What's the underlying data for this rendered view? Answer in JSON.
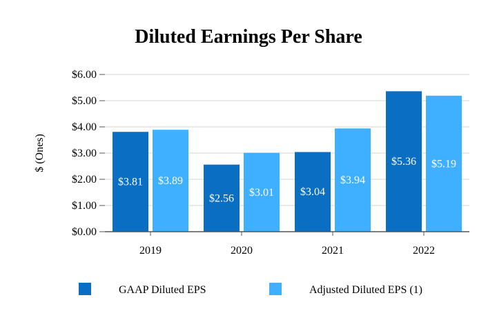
{
  "chart_data": {
    "type": "bar",
    "title": "Diluted Earnings Per Share",
    "ylabel": "$ (Ones)",
    "xlabel": "",
    "categories": [
      "2019",
      "2020",
      "2021",
      "2022"
    ],
    "series": [
      {
        "name": "GAAP Diluted EPS",
        "values": [
          3.81,
          2.56,
          3.04,
          5.36
        ],
        "labels": [
          "$3.81",
          "$2.56",
          "$3.04",
          "$5.36"
        ],
        "color": "#0a6fc2"
      },
      {
        "name": "Adjusted Diluted EPS (1)",
        "values": [
          3.89,
          3.01,
          3.94,
          5.19
        ],
        "labels": [
          "$3.89",
          "$3.01",
          "$3.94",
          "$5.19"
        ],
        "color": "#3fb0ff"
      }
    ],
    "ylim": [
      0,
      6
    ],
    "yticks": [
      0,
      1,
      2,
      3,
      4,
      5,
      6
    ],
    "ytick_labels": [
      "$0.00",
      "$1.00",
      "$2.00",
      "$3.00",
      "$4.00",
      "$5.00",
      "$6.00"
    ],
    "grid": true,
    "legend_position": "bottom"
  }
}
